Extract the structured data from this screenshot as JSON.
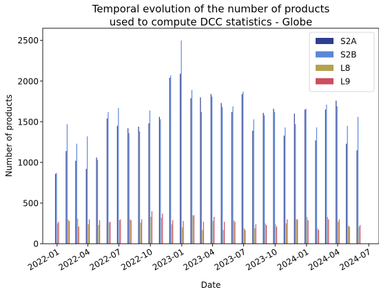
{
  "chart_data": {
    "type": "bar",
    "title_lines": [
      "Temporal evolution of the number of products",
      "used to compute DCC statistics - Globe"
    ],
    "xlabel": "Date",
    "ylabel": "Number of products",
    "ylim": [
      0,
      2650
    ],
    "yticks": [
      0,
      500,
      1000,
      1500,
      2000,
      2500
    ],
    "x_range": [
      "2021-11-20",
      "2024-07-31"
    ],
    "xticks": [
      {
        "date": "2022-01-01",
        "label": "2022-01"
      },
      {
        "date": "2022-04-01",
        "label": "2022-04"
      },
      {
        "date": "2022-07-01",
        "label": "2022-07"
      },
      {
        "date": "2022-10-01",
        "label": "2022-10"
      },
      {
        "date": "2023-01-01",
        "label": "2023-01"
      },
      {
        "date": "2023-04-01",
        "label": "2023-04"
      },
      {
        "date": "2023-07-01",
        "label": "2023-07"
      },
      {
        "date": "2023-10-01",
        "label": "2023-10"
      },
      {
        "date": "2024-01-01",
        "label": "2024-01"
      },
      {
        "date": "2024-04-01",
        "label": "2024-04"
      },
      {
        "date": "2024-07-01",
        "label": "2024-07"
      }
    ],
    "categories": [
      "2022-01",
      "2022-02",
      "2022-03",
      "2022-04",
      "2022-05",
      "2022-06",
      "2022-07",
      "2022-08",
      "2022-09",
      "2022-10",
      "2022-11",
      "2022-12",
      "2023-01",
      "2023-02",
      "2023-03",
      "2023-04",
      "2023-05",
      "2023-06",
      "2023-07",
      "2023-08",
      "2023-09",
      "2023-10",
      "2023-11",
      "2023-12",
      "2024-01",
      "2024-02",
      "2024-03",
      "2024-04",
      "2024-05",
      "2024-06"
    ],
    "series": [
      {
        "name": "S2A",
        "color": "#2e3f8f",
        "values": [
          860,
          1140,
          1020,
          920,
          1060,
          1540,
          1450,
          1420,
          1440,
          1480,
          1560,
          2040,
          2090,
          1790,
          1800,
          1840,
          1730,
          1620,
          1840,
          1390,
          1610,
          1660,
          1330,
          1600,
          1650,
          1270,
          1650,
          1760,
          1230,
          1150
        ]
      },
      {
        "name": "S2B",
        "color": "#5b87d8",
        "values": [
          870,
          1470,
          1230,
          1320,
          1030,
          1620,
          1670,
          1360,
          1380,
          1640,
          1530,
          2070,
          2500,
          1890,
          1620,
          1810,
          1680,
          1690,
          1870,
          1530,
          1580,
          1620,
          1430,
          1470,
          1660,
          1430,
          1710,
          1690,
          1450,
          1560
        ]
      },
      {
        "name": "L8",
        "color": "#b5a24e",
        "values": [
          250,
          300,
          310,
          240,
          230,
          260,
          290,
          300,
          260,
          330,
          320,
          240,
          200,
          350,
          170,
          280,
          170,
          290,
          190,
          190,
          250,
          240,
          250,
          300,
          330,
          190,
          330,
          270,
          220,
          210
        ]
      },
      {
        "name": "L9",
        "color": "#c9505f",
        "values": [
          270,
          280,
          210,
          300,
          290,
          270,
          300,
          290,
          300,
          400,
          370,
          290,
          280,
          350,
          270,
          330,
          270,
          270,
          170,
          240,
          230,
          210,
          300,
          300,
          290,
          170,
          300,
          300,
          210,
          230
        ]
      }
    ],
    "legend": {
      "position": "top-right"
    },
    "grid": false
  }
}
